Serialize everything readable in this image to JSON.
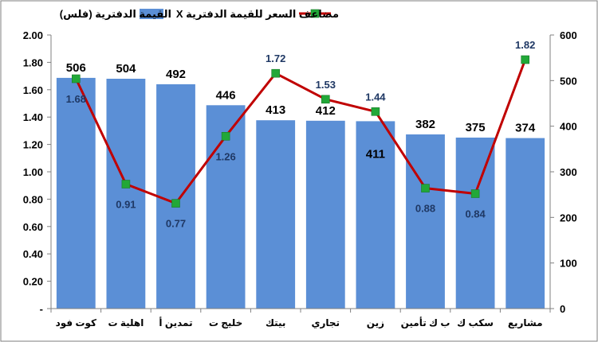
{
  "chart_data": {
    "type": "bar",
    "categories": [
      "كوت فود",
      "اهلية ت",
      "تمدين أ",
      "خليج ت",
      "بيتك",
      "تجاري",
      "زين",
      "ب ك تأمين",
      "سكب ك",
      "مشاريع"
    ],
    "series": [
      {
        "name": "القيمة الدفترية (فلس)",
        "type": "bar",
        "axis": "right",
        "color": "#5b8fd6",
        "values": [
          506,
          504,
          492,
          446,
          413,
          412,
          411,
          382,
          375,
          374
        ]
      },
      {
        "name": "مضاعف السعر للقيمة الدفترية X",
        "type": "line",
        "axis": "left",
        "color": "#c00000",
        "marker_color": "#22a838",
        "values": [
          1.68,
          0.91,
          0.77,
          1.26,
          1.72,
          1.53,
          1.44,
          0.88,
          0.84,
          1.82
        ]
      }
    ],
    "y_left": {
      "min": 0,
      "max": 2.0,
      "ticks": [
        0,
        0.2,
        0.4,
        0.6,
        0.8,
        1.0,
        1.2,
        1.4,
        1.6,
        1.8,
        2.0
      ],
      "tick_labels": [
        "-",
        "0.20",
        "0.40",
        "0.60",
        "0.80",
        "1.00",
        "1.20",
        "1.40",
        "1.60",
        "1.80",
        "2.00"
      ]
    },
    "y_right": {
      "min": 0,
      "max": 600,
      "ticks": [
        0,
        100,
        200,
        300,
        400,
        500,
        600
      ],
      "tick_labels": [
        "0",
        "100",
        "200",
        "300",
        "400",
        "500",
        "600"
      ]
    },
    "bar_labels": [
      "506",
      "504",
      "492",
      "446",
      "413",
      "412",
      "411",
      "382",
      "375",
      "374"
    ],
    "line_labels": [
      "1.68",
      "0.91",
      "0.77",
      "1.26",
      "1.72",
      "1.53",
      "1.44",
      "0.88",
      "0.84",
      "1.82"
    ],
    "legend_position": "top",
    "grid": false
  }
}
